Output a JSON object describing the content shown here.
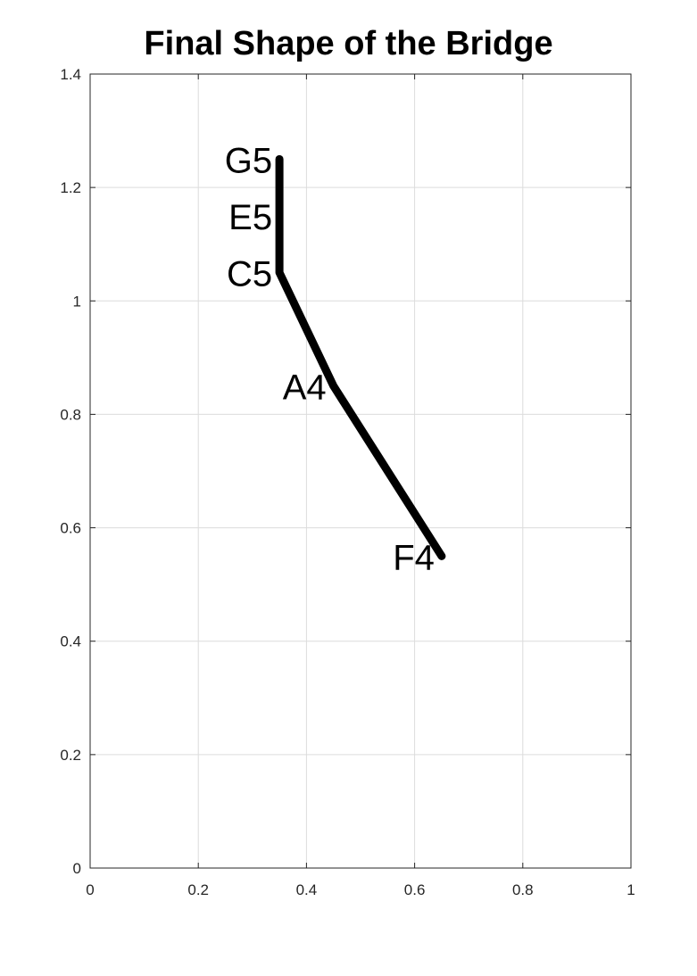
{
  "chart_data": {
    "type": "line",
    "title": "Final Shape of the Bridge",
    "xlabel": "",
    "ylabel": "",
    "xlim": [
      0,
      1
    ],
    "ylim": [
      0,
      1.4
    ],
    "grid": true,
    "x_ticks": [
      "0",
      "0.2",
      "0.4",
      "0.6",
      "0.8",
      "1"
    ],
    "y_ticks": [
      "0",
      "0.2",
      "0.4",
      "0.6",
      "0.8",
      "1",
      "1.2",
      "1.4"
    ],
    "series": [
      {
        "color": "#000000",
        "x": [
          0.65,
          0.45,
          0.35,
          0.35,
          0.35
        ],
        "y": [
          0.55,
          0.85,
          1.05,
          1.15,
          1.25
        ]
      }
    ],
    "annotations": [
      {
        "text": "F4",
        "x": 0.65,
        "y": 0.55
      },
      {
        "text": "A4",
        "x": 0.45,
        "y": 0.85
      },
      {
        "text": "C5",
        "x": 0.35,
        "y": 1.05
      },
      {
        "text": "E5",
        "x": 0.35,
        "y": 1.15
      },
      {
        "text": "G5",
        "x": 0.35,
        "y": 1.25
      }
    ]
  }
}
